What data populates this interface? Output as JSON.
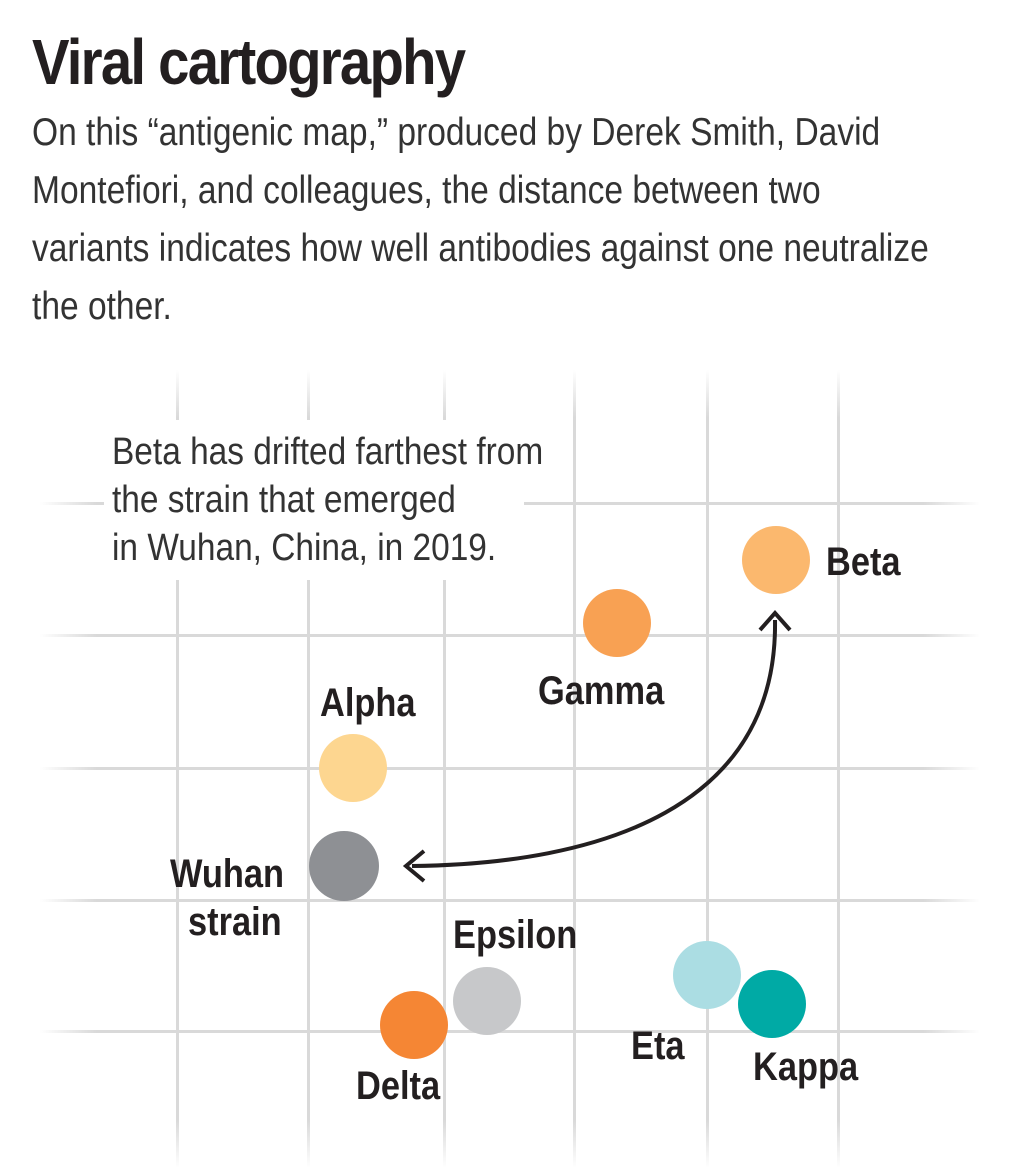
{
  "title": "Viral cartography",
  "subtitle": "On this “antigenic map,” produced by Derek Smith, David Montefiori, and colleagues, the distance between two variants indicates how  well antibodies against one neutralize the other.",
  "annotation": {
    "line1": "Beta has drifted farthest from",
    "line2": "the strain that emerged",
    "line3": "in Wuhan, China, in 2019."
  },
  "variants": [
    {
      "name": "Beta",
      "color": "#fbb86e"
    },
    {
      "name": "Gamma",
      "color": "#f8a153"
    },
    {
      "name": "Alpha",
      "color": "#fdd690"
    },
    {
      "name": "Wuhan strain",
      "line1": "Wuhan",
      "line2": "strain",
      "color": "#8e9094"
    },
    {
      "name": "Epsilon",
      "color": "#c7c8ca"
    },
    {
      "name": "Delta",
      "color": "#f58634"
    },
    {
      "name": "Eta",
      "color": "#abdde3"
    },
    {
      "name": "Kappa",
      "color": "#00aaa5"
    }
  ],
  "colors": {
    "grid": "#d9d9d9",
    "arrow": "#231f20"
  }
}
